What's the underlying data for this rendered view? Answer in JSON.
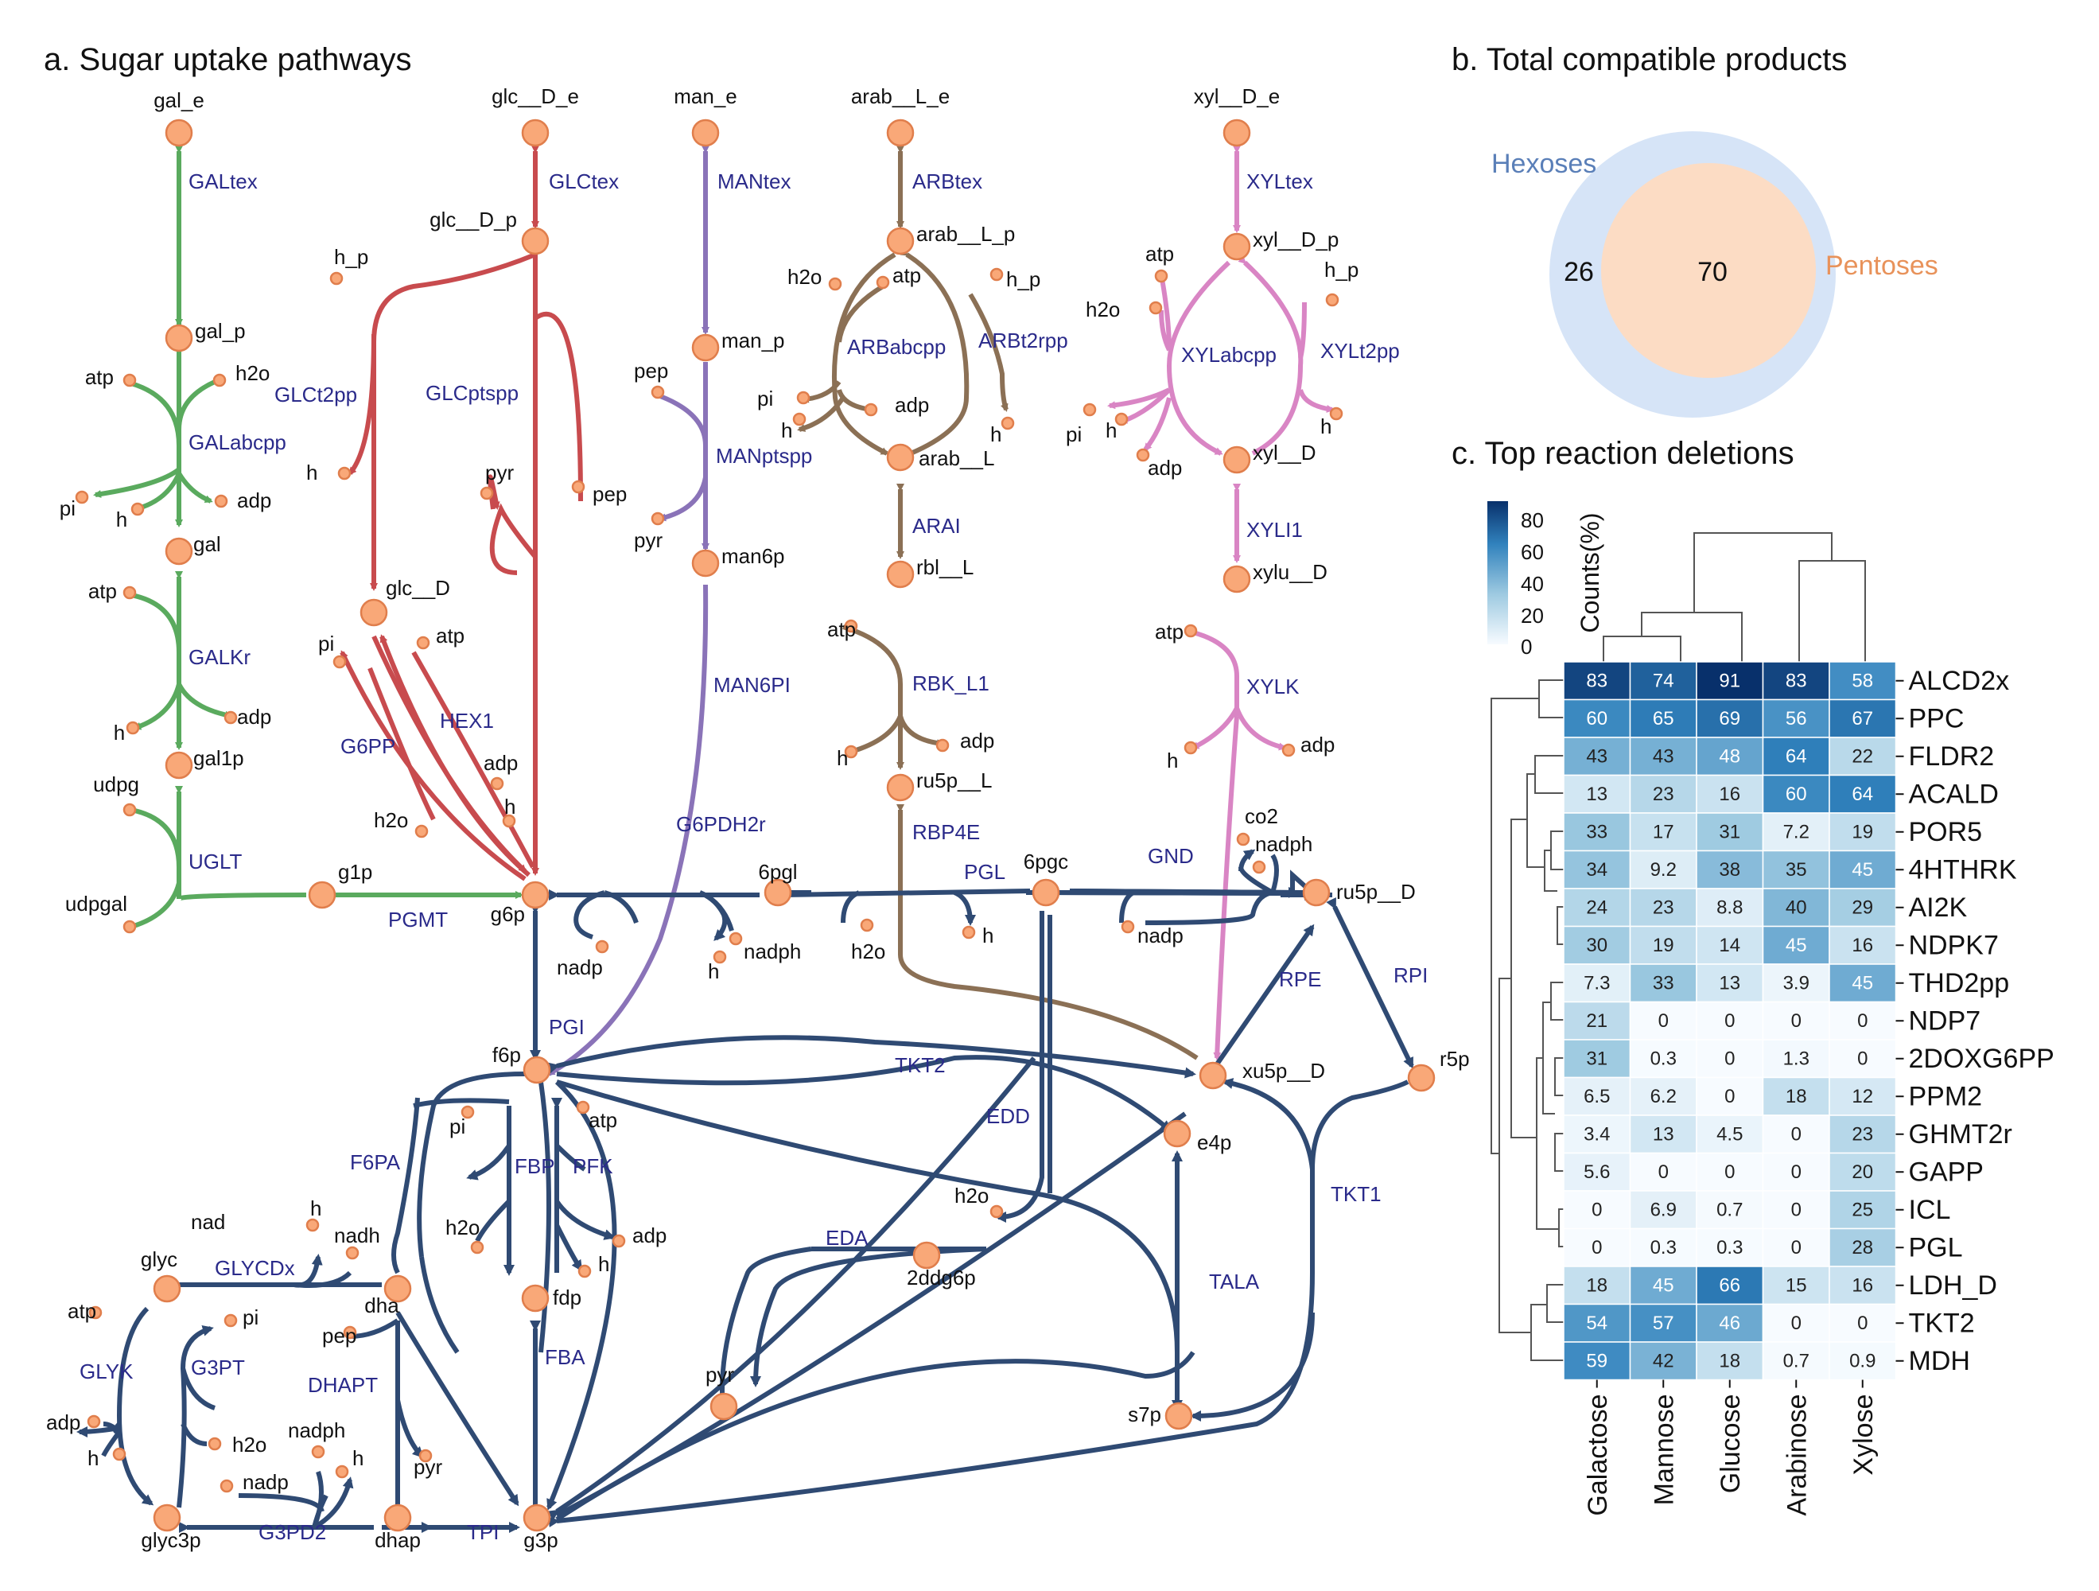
{
  "titles": {
    "a": "a. Sugar uptake pathways",
    "b": "b. Total compatible products",
    "c": "c. Top reaction deletions"
  },
  "colors": {
    "galactose": "#5aaa5e",
    "glucose": "#c84b4e",
    "mannose": "#8a73b8",
    "arabinose": "#8b7055",
    "xylose": "#d985c4",
    "central": "#2f4a73",
    "node_fill": "#f9a878",
    "reaction_label": "#2a2a8a"
  },
  "metabolites": [
    {
      "id": "gal_e",
      "label": "gal_e"
    },
    {
      "id": "gal_p",
      "label": "gal_p"
    },
    {
      "id": "gal",
      "label": "gal"
    },
    {
      "id": "gal1p",
      "label": "gal1p"
    },
    {
      "id": "g1p",
      "label": "g1p"
    },
    {
      "id": "glc_e",
      "label": "glc__D_e"
    },
    {
      "id": "glc_p",
      "label": "glc__D_p"
    },
    {
      "id": "glc",
      "label": "glc__D"
    },
    {
      "id": "g6p",
      "label": "g6p"
    },
    {
      "id": "man_e",
      "label": "man_e"
    },
    {
      "id": "man_p",
      "label": "man_p"
    },
    {
      "id": "man6p",
      "label": "man6p"
    },
    {
      "id": "arab_e",
      "label": "arab__L_e"
    },
    {
      "id": "arab_p",
      "label": "arab__L_p"
    },
    {
      "id": "arab",
      "label": "arab__L"
    },
    {
      "id": "rbl",
      "label": "rbl__L"
    },
    {
      "id": "ru5pL",
      "label": "ru5p__L"
    },
    {
      "id": "xyl_e",
      "label": "xyl__D_e"
    },
    {
      "id": "xyl_p",
      "label": "xyl__D_p"
    },
    {
      "id": "xyl",
      "label": "xyl__D"
    },
    {
      "id": "xylu",
      "label": "xylu__D"
    },
    {
      "id": "6pgl",
      "label": "6pgl"
    },
    {
      "id": "6pgc",
      "label": "6pgc"
    },
    {
      "id": "ru5pD",
      "label": "ru5p__D"
    },
    {
      "id": "xu5p",
      "label": "xu5p__D"
    },
    {
      "id": "r5p",
      "label": "r5p"
    },
    {
      "id": "f6p",
      "label": "f6p"
    },
    {
      "id": "e4p",
      "label": "e4p"
    },
    {
      "id": "2ddg6p",
      "label": "2ddg6p"
    },
    {
      "id": "fdp",
      "label": "fdp"
    },
    {
      "id": "s7p",
      "label": "s7p"
    },
    {
      "id": "g3p",
      "label": "g3p"
    },
    {
      "id": "dhap",
      "label": "dhap"
    },
    {
      "id": "dha",
      "label": "dha"
    },
    {
      "id": "glyc",
      "label": "glyc"
    },
    {
      "id": "glyc3p",
      "label": "glyc3p"
    },
    {
      "id": "pyr_big",
      "label": "pyr"
    }
  ],
  "cofactors": [
    "atp",
    "h2o",
    "pi",
    "h",
    "adp",
    "atp",
    "adp",
    "h",
    "udpg",
    "udpgal",
    "h_p",
    "h",
    "pyr",
    "pep",
    "pi",
    "atp",
    "adp",
    "h",
    "h2o",
    "pep",
    "pyr",
    "h2o",
    "atp",
    "h_p",
    "pi",
    "h",
    "adp",
    "h",
    "atp",
    "adp",
    "h",
    "atp",
    "h2o",
    "h_p",
    "pi",
    "h",
    "adp",
    "h",
    "atp",
    "adp",
    "h",
    "nadp",
    "h",
    "nadph",
    "h2o",
    "h",
    "nadp",
    "co2",
    "nadph",
    "pi",
    "atp",
    "h2o",
    "adp",
    "h",
    "h2o",
    "nad",
    "nadh",
    "h",
    "pi",
    "atp",
    "h2o",
    "adp",
    "h",
    "pep",
    "pyr",
    "nadp",
    "nadph",
    "h",
    "adp",
    "h",
    "h2o",
    "pyr",
    "h"
  ],
  "reactions": [
    "GALtex",
    "GALabcpp",
    "GALKr",
    "UGLT",
    "PGMT",
    "GLCtex",
    "GLCt2pp",
    "GLCptspp",
    "G6PP",
    "HEX1",
    "MANtex",
    "MANptspp",
    "MAN6PI",
    "ARBtex",
    "ARBabcpp",
    "ARBt2rpp",
    "ARAI",
    "RBK_L1",
    "RBP4E",
    "XYLtex",
    "XYLabcpp",
    "XYLt2pp",
    "XYLI1",
    "XYLK",
    "G6PDH2r",
    "PGL",
    "GND",
    "RPE",
    "RPI",
    "PGI",
    "TKT2",
    "EDD",
    "TKT1",
    "EDA",
    "TALA",
    "F6PA",
    "FBP",
    "PFK",
    "FBA",
    "GLYCDx",
    "GLYK",
    "G3PT",
    "DHAPT",
    "G3PD2",
    "TPI"
  ],
  "venn": {
    "set_a": "Hexoses",
    "set_b": "Pentoses",
    "only_a": "26",
    "overlap": "70",
    "color_a": "#d6e4f7",
    "color_b": "#fcdcc4",
    "label_a_color": "#5a7fb8",
    "label_b_color": "#e8925a"
  },
  "heatmap": {
    "legend_label": "Counts(%)",
    "legend_ticks": [
      "80",
      "60",
      "40",
      "20",
      "0"
    ],
    "columns": [
      "Galactose",
      "Mannose",
      "Glucose",
      "Arabinose",
      "Xylose"
    ],
    "rows": [
      "ALCD2x",
      "PPC",
      "FLDR2",
      "ACALD",
      "POR5",
      "4HTHRK",
      "AI2K",
      "NDPK7",
      "THD2pp",
      "NDP7",
      "2DOXG6PP",
      "PPM2",
      "GHMT2r",
      "GAPP",
      "ICL",
      "PGL",
      "LDH_D",
      "TKT2",
      "MDH"
    ],
    "values": [
      [
        "83",
        "74",
        "91",
        "83",
        "58"
      ],
      [
        "60",
        "65",
        "69",
        "56",
        "67"
      ],
      [
        "43",
        "43",
        "48",
        "64",
        "22"
      ],
      [
        "13",
        "23",
        "16",
        "60",
        "64"
      ],
      [
        "33",
        "17",
        "31",
        "7.2",
        "19"
      ],
      [
        "34",
        "9.2",
        "38",
        "35",
        "45"
      ],
      [
        "24",
        "23",
        "8.8",
        "40",
        "29"
      ],
      [
        "30",
        "19",
        "14",
        "45",
        "16"
      ],
      [
        "7.3",
        "33",
        "13",
        "3.9",
        "45"
      ],
      [
        "21",
        "0",
        "0",
        "0",
        "0"
      ],
      [
        "31",
        "0.3",
        "0",
        "1.3",
        "0"
      ],
      [
        "6.5",
        "6.2",
        "0",
        "18",
        "12"
      ],
      [
        "3.4",
        "13",
        "4.5",
        "0",
        "23"
      ],
      [
        "5.6",
        "0",
        "0",
        "0",
        "20"
      ],
      [
        "0",
        "6.9",
        "0.7",
        "0",
        "25"
      ],
      [
        "0",
        "0.3",
        "0.3",
        "0",
        "28"
      ],
      [
        "18",
        "45",
        "66",
        "15",
        "16"
      ],
      [
        "54",
        "57",
        "46",
        "0",
        "0"
      ],
      [
        "59",
        "42",
        "18",
        "0.7",
        "0.9"
      ]
    ]
  }
}
